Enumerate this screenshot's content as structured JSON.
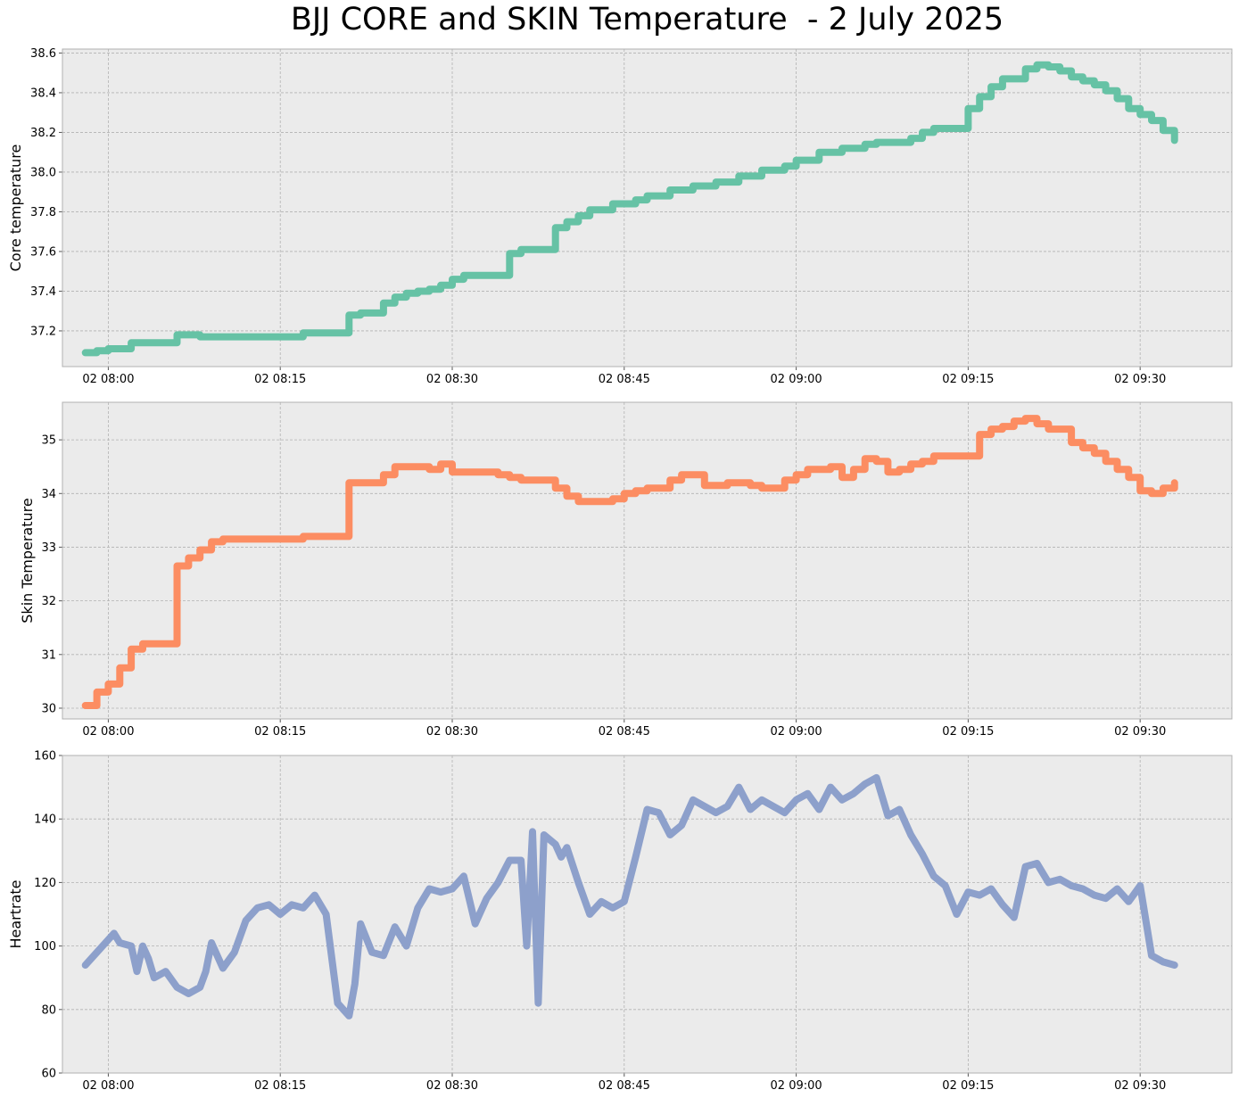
{
  "figure": {
    "title": "BJJ CORE and SKIN Temperature  - 2 July 2025"
  },
  "chart_data": [
    {
      "type": "line",
      "ylabel": "Core temperature",
      "xlabel": "",
      "color": "#66c2a5",
      "grid": true,
      "xlim": [
        "02 07:56",
        "02 09:38"
      ],
      "ylim": [
        37.02,
        38.62
      ],
      "x_ticks": [
        "02 08:00",
        "02 08:15",
        "02 08:30",
        "02 08:45",
        "02 09:00",
        "02 09:15",
        "02 09:30"
      ],
      "y_ticks": [
        "37.2",
        "37.4",
        "37.6",
        "37.8",
        "38.0",
        "38.2",
        "38.4",
        "38.6"
      ],
      "series": [
        {
          "x": [
            "07:58",
            "07:59",
            "08:00",
            "08:01",
            "08:02",
            "08:06",
            "08:07",
            "08:08",
            "08:09",
            "08:17",
            "08:21",
            "08:22",
            "08:24",
            "08:25",
            "08:26",
            "08:27",
            "08:28",
            "08:29",
            "08:30",
            "08:31",
            "08:35",
            "08:36",
            "08:39",
            "08:40",
            "08:41",
            "08:42",
            "08:43",
            "08:44",
            "08:46",
            "08:47",
            "08:49",
            "08:51",
            "08:53",
            "08:55",
            "08:57",
            "08:59",
            "09:00",
            "09:02",
            "09:04",
            "09:06",
            "09:07",
            "09:09",
            "09:10",
            "09:11",
            "09:12",
            "09:13",
            "09:15",
            "09:16",
            "09:17",
            "09:18",
            "09:20",
            "09:21",
            "09:22",
            "09:23",
            "09:24",
            "09:25",
            "09:26",
            "09:27",
            "09:28",
            "09:29",
            "09:30",
            "09:31",
            "09:32",
            "09:33"
          ],
          "values": [
            37.09,
            37.1,
            37.11,
            37.11,
            37.14,
            37.18,
            37.18,
            37.17,
            37.17,
            37.19,
            37.28,
            37.29,
            37.34,
            37.37,
            37.39,
            37.4,
            37.41,
            37.43,
            37.46,
            37.48,
            37.59,
            37.61,
            37.72,
            37.75,
            37.78,
            37.81,
            37.81,
            37.84,
            37.86,
            37.88,
            37.91,
            37.93,
            37.95,
            37.98,
            38.01,
            38.03,
            38.06,
            38.1,
            38.12,
            38.14,
            38.15,
            38.15,
            38.17,
            38.2,
            38.22,
            38.22,
            38.32,
            38.38,
            38.43,
            38.47,
            38.52,
            38.54,
            38.53,
            38.51,
            38.48,
            38.46,
            38.44,
            38.41,
            38.37,
            38.32,
            38.29,
            38.26,
            38.21,
            38.16
          ]
        }
      ]
    },
    {
      "type": "line",
      "ylabel": "Skin Temperature",
      "xlabel": "",
      "color": "#fc8d62",
      "grid": true,
      "xlim": [
        "02 07:56",
        "02 09:38"
      ],
      "ylim": [
        29.8,
        35.7
      ],
      "x_ticks": [
        "02 08:00",
        "02 08:15",
        "02 08:30",
        "02 08:45",
        "02 09:00",
        "02 09:15",
        "02 09:30"
      ],
      "y_ticks": [
        "30",
        "31",
        "32",
        "33",
        "34",
        "35"
      ],
      "series": [
        {
          "x": [
            "07:58",
            "07:59",
            "08:00",
            "08:01",
            "08:02",
            "08:03",
            "08:05",
            "08:06",
            "08:07",
            "08:08",
            "08:09",
            "08:10",
            "08:14",
            "08:17",
            "08:21",
            "08:22",
            "08:24",
            "08:25",
            "08:27",
            "08:28",
            "08:29",
            "08:30",
            "08:31",
            "08:34",
            "08:35",
            "08:36",
            "08:39",
            "08:40",
            "08:41",
            "08:42",
            "08:44",
            "08:45",
            "08:46",
            "08:47",
            "08:49",
            "08:50",
            "08:52",
            "08:54",
            "08:56",
            "08:57",
            "08:59",
            "09:00",
            "09:01",
            "09:02",
            "09:03",
            "09:04",
            "09:05",
            "09:06",
            "09:07",
            "09:08",
            "09:09",
            "09:10",
            "09:11",
            "09:12",
            "09:14",
            "09:16",
            "09:17",
            "09:18",
            "09:19",
            "09:20",
            "09:21",
            "09:22",
            "09:24",
            "09:25",
            "09:26",
            "09:27",
            "09:28",
            "09:29",
            "09:30",
            "09:31",
            "09:32",
            "09:33"
          ],
          "values": [
            30.05,
            30.3,
            30.45,
            30.75,
            31.1,
            31.2,
            31.2,
            32.65,
            32.8,
            32.95,
            33.1,
            33.15,
            33.15,
            33.2,
            34.2,
            34.2,
            34.35,
            34.5,
            34.5,
            34.45,
            34.55,
            34.4,
            34.4,
            34.35,
            34.3,
            34.25,
            34.1,
            33.95,
            33.85,
            33.85,
            33.9,
            34.0,
            34.05,
            34.1,
            34.25,
            34.35,
            34.15,
            34.2,
            34.15,
            34.1,
            34.25,
            34.35,
            34.45,
            34.45,
            34.5,
            34.3,
            34.45,
            34.65,
            34.6,
            34.4,
            34.45,
            34.55,
            34.6,
            34.7,
            34.7,
            35.1,
            35.2,
            35.25,
            35.35,
            35.4,
            35.3,
            35.2,
            34.95,
            34.85,
            34.75,
            34.6,
            34.45,
            34.3,
            34.05,
            34.0,
            34.1,
            34.2
          ]
        }
      ]
    },
    {
      "type": "line",
      "ylabel": "Heartrate",
      "xlabel": "",
      "color": "#8da0cb",
      "grid": true,
      "xlim": [
        "02 07:56",
        "02 09:38"
      ],
      "ylim": [
        60,
        160
      ],
      "x_ticks": [
        "02 08:00",
        "02 08:15",
        "02 08:30",
        "02 08:45",
        "02 09:00",
        "02 09:15",
        "02 09:30"
      ],
      "y_ticks": [
        "60",
        "80",
        "100",
        "120",
        "140",
        "160"
      ],
      "series": [
        {
          "x": [
            "07:58",
            "07:59",
            "08:00",
            "08:00:30",
            "08:01",
            "08:02",
            "08:02:30",
            "08:03",
            "08:03:30",
            "08:04",
            "08:05",
            "08:06",
            "08:07",
            "08:08",
            "08:08:30",
            "08:09",
            "08:10",
            "08:11",
            "08:12",
            "08:13",
            "08:14",
            "08:15",
            "08:16",
            "08:17",
            "08:18",
            "08:19",
            "08:20",
            "08:21",
            "08:21:30",
            "08:22",
            "08:23",
            "08:24",
            "08:25",
            "08:26",
            "08:27",
            "08:28",
            "08:29",
            "08:30",
            "08:31",
            "08:32",
            "08:33",
            "08:34",
            "08:35",
            "08:36",
            "08:36:30",
            "08:37",
            "08:37:30",
            "08:38",
            "08:39",
            "08:39:30",
            "08:40",
            "08:41",
            "08:42",
            "08:43",
            "08:44",
            "08:45",
            "08:46",
            "08:47",
            "08:48",
            "08:49",
            "08:50",
            "08:51",
            "08:52",
            "08:53",
            "08:54",
            "08:55",
            "08:56",
            "08:57",
            "08:58",
            "08:59",
            "09:00",
            "09:01",
            "09:02",
            "09:03",
            "09:04",
            "09:05",
            "09:06",
            "09:07",
            "09:08",
            "09:09",
            "09:10",
            "09:11",
            "09:12",
            "09:13",
            "09:14",
            "09:15",
            "09:16",
            "09:17",
            "09:18",
            "09:19",
            "09:20",
            "09:21",
            "09:22",
            "09:23",
            "09:24",
            "09:25",
            "09:26",
            "09:27",
            "09:28",
            "09:29",
            "09:30",
            "09:31",
            "09:32",
            "09:33"
          ],
          "values": [
            94,
            98,
            102,
            104,
            101,
            100,
            92,
            100,
            96,
            90,
            92,
            87,
            85,
            87,
            92,
            101,
            93,
            98,
            108,
            112,
            113,
            110,
            113,
            112,
            116,
            110,
            82,
            78,
            88,
            107,
            98,
            97,
            106,
            100,
            112,
            118,
            117,
            118,
            122,
            107,
            115,
            120,
            127,
            127,
            100,
            136,
            82,
            135,
            132,
            128,
            131,
            120,
            110,
            114,
            112,
            114,
            128,
            143,
            142,
            135,
            138,
            146,
            144,
            142,
            144,
            150,
            143,
            146,
            144,
            142,
            146,
            148,
            143,
            150,
            146,
            148,
            151,
            153,
            141,
            143,
            135,
            129,
            122,
            119,
            110,
            117,
            116,
            118,
            113,
            109,
            125,
            126,
            120,
            121,
            119,
            118,
            116,
            115,
            118,
            114,
            119,
            97,
            95,
            94
          ]
        }
      ]
    }
  ]
}
